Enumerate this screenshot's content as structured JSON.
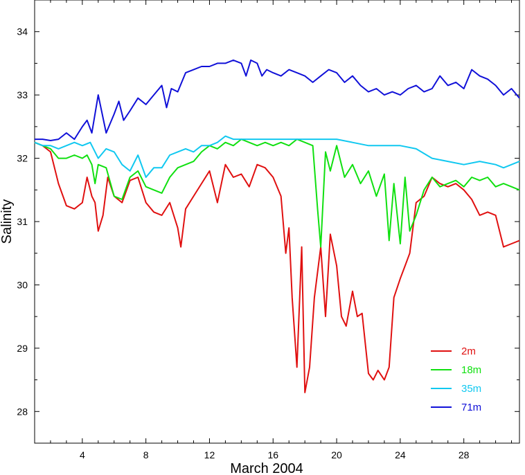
{
  "chart_data": {
    "type": "line",
    "title": "",
    "xlabel": "March 2004",
    "ylabel": "Salinity",
    "xlim": [
      1,
      31.5
    ],
    "ylim": [
      27.5,
      34.5
    ],
    "x_ticks": [
      4,
      8,
      12,
      16,
      20,
      24,
      28
    ],
    "y_ticks": [
      28,
      29,
      30,
      31,
      32,
      33,
      34
    ],
    "legend_position": "bottom-right",
    "grid": false,
    "series": [
      {
        "name": "2m",
        "color": "#e01010",
        "x": [
          1.0,
          1.5,
          2.0,
          2.5,
          3.0,
          3.5,
          4.0,
          4.3,
          4.6,
          4.8,
          5.0,
          5.3,
          5.6,
          6.0,
          6.5,
          7.0,
          7.5,
          8.0,
          8.5,
          9.0,
          9.5,
          10.0,
          10.2,
          10.5,
          11.0,
          11.5,
          12.0,
          12.5,
          13.0,
          13.5,
          14.0,
          14.5,
          15.0,
          15.5,
          16.0,
          16.5,
          16.8,
          17.0,
          17.2,
          17.5,
          17.8,
          18.0,
          18.3,
          18.6,
          19.0,
          19.3,
          19.6,
          20.0,
          20.3,
          20.6,
          21.0,
          21.3,
          21.6,
          22.0,
          22.3,
          22.6,
          23.0,
          23.3,
          23.6,
          24.0,
          24.3,
          24.6,
          25.0,
          25.5,
          26.0,
          26.5,
          27.0,
          27.5,
          28.0,
          28.5,
          29.0,
          29.5,
          30.0,
          30.5,
          31.0,
          31.5
        ],
        "values": [
          32.25,
          32.2,
          32.1,
          31.6,
          31.25,
          31.2,
          31.3,
          31.7,
          31.4,
          31.3,
          30.85,
          31.1,
          31.7,
          31.4,
          31.3,
          31.65,
          31.7,
          31.3,
          31.15,
          31.1,
          31.3,
          30.9,
          30.6,
          31.2,
          31.4,
          31.6,
          31.8,
          31.3,
          31.9,
          31.7,
          31.75,
          31.55,
          31.9,
          31.85,
          31.7,
          31.4,
          30.5,
          30.9,
          29.8,
          28.7,
          30.6,
          28.3,
          28.7,
          29.8,
          30.6,
          29.5,
          30.8,
          30.3,
          29.5,
          29.35,
          29.9,
          29.5,
          29.55,
          28.6,
          28.5,
          28.65,
          28.5,
          28.7,
          29.8,
          30.1,
          30.3,
          30.5,
          31.3,
          31.4,
          31.7,
          31.6,
          31.55,
          31.6,
          31.5,
          31.35,
          31.1,
          31.15,
          31.1,
          30.6,
          30.65,
          30.7
        ]
      },
      {
        "name": "18m",
        "color": "#10e010",
        "x": [
          1.0,
          1.5,
          2.0,
          2.5,
          3.0,
          3.5,
          4.0,
          4.3,
          4.6,
          4.8,
          5.0,
          5.5,
          6.0,
          6.5,
          7.0,
          7.5,
          8.0,
          8.5,
          9.0,
          9.5,
          10.0,
          10.5,
          11.0,
          11.5,
          12.0,
          12.5,
          13.0,
          13.5,
          14.0,
          14.5,
          15.0,
          15.5,
          16.0,
          16.5,
          17.0,
          17.5,
          18.0,
          18.5,
          18.8,
          19.0,
          19.3,
          19.6,
          20.0,
          20.5,
          21.0,
          21.5,
          22.0,
          22.5,
          23.0,
          23.3,
          23.6,
          24.0,
          24.3,
          24.6,
          25.0,
          25.5,
          26.0,
          26.5,
          27.0,
          27.5,
          28.0,
          28.5,
          29.0,
          29.5,
          30.0,
          30.5,
          31.0,
          31.5
        ],
        "values": [
          32.25,
          32.2,
          32.15,
          32.0,
          32.0,
          32.05,
          32.0,
          32.05,
          31.9,
          31.6,
          31.9,
          31.85,
          31.4,
          31.35,
          31.7,
          31.8,
          31.55,
          31.5,
          31.45,
          31.7,
          31.85,
          31.9,
          31.95,
          32.1,
          32.2,
          32.15,
          32.25,
          32.2,
          32.3,
          32.25,
          32.2,
          32.25,
          32.2,
          32.25,
          32.2,
          32.3,
          32.25,
          32.2,
          31.2,
          30.6,
          32.1,
          31.8,
          32.2,
          31.7,
          31.9,
          31.6,
          31.8,
          31.4,
          31.75,
          30.7,
          31.6,
          30.65,
          31.7,
          30.85,
          31.1,
          31.5,
          31.7,
          31.55,
          31.6,
          31.65,
          31.55,
          31.7,
          31.65,
          31.7,
          31.55,
          31.6,
          31.55,
          31.5
        ]
      },
      {
        "name": "35m",
        "color": "#10c8f0",
        "x": [
          1.0,
          1.5,
          2.0,
          2.5,
          3.0,
          3.5,
          4.0,
          4.5,
          5.0,
          5.5,
          6.0,
          6.5,
          7.0,
          7.5,
          8.0,
          8.5,
          9.0,
          9.5,
          10.0,
          10.5,
          11.0,
          11.5,
          12.0,
          12.5,
          13.0,
          13.5,
          14.0,
          15.0,
          16.0,
          17.0,
          18.0,
          19.0,
          20.0,
          21.0,
          22.0,
          23.0,
          24.0,
          25.0,
          26.0,
          27.0,
          28.0,
          29.0,
          30.0,
          30.5,
          31.0,
          31.5
        ],
        "values": [
          32.25,
          32.2,
          32.2,
          32.15,
          32.2,
          32.25,
          32.2,
          32.25,
          32.0,
          32.15,
          32.1,
          31.9,
          31.8,
          32.05,
          31.7,
          31.85,
          31.85,
          32.05,
          32.1,
          32.15,
          32.1,
          32.2,
          32.2,
          32.25,
          32.35,
          32.3,
          32.3,
          32.3,
          32.3,
          32.3,
          32.3,
          32.3,
          32.3,
          32.25,
          32.2,
          32.2,
          32.2,
          32.15,
          32.0,
          31.95,
          31.9,
          31.95,
          31.9,
          31.85,
          31.9,
          31.95
        ]
      },
      {
        "name": "71m",
        "color": "#1010d8",
        "x": [
          1.0,
          1.5,
          2.0,
          2.5,
          3.0,
          3.5,
          4.0,
          4.3,
          4.6,
          5.0,
          5.5,
          6.0,
          6.3,
          6.6,
          7.0,
          7.5,
          8.0,
          8.5,
          9.0,
          9.3,
          9.6,
          10.0,
          10.5,
          11.0,
          11.5,
          12.0,
          12.5,
          13.0,
          13.5,
          14.0,
          14.3,
          14.6,
          15.0,
          15.3,
          15.6,
          16.0,
          16.5,
          17.0,
          17.5,
          18.0,
          18.5,
          19.0,
          19.5,
          20.0,
          20.5,
          21.0,
          21.5,
          22.0,
          22.5,
          23.0,
          23.5,
          24.0,
          24.5,
          25.0,
          25.5,
          26.0,
          26.5,
          27.0,
          27.5,
          28.0,
          28.5,
          29.0,
          29.5,
          30.0,
          30.5,
          31.0,
          31.5
        ],
        "values": [
          32.3,
          32.3,
          32.28,
          32.3,
          32.4,
          32.3,
          32.5,
          32.6,
          32.4,
          33.0,
          32.4,
          32.7,
          32.9,
          32.6,
          32.75,
          32.95,
          32.85,
          33.0,
          33.15,
          32.8,
          33.1,
          33.05,
          33.35,
          33.4,
          33.45,
          33.45,
          33.5,
          33.5,
          33.55,
          33.5,
          33.3,
          33.55,
          33.5,
          33.3,
          33.4,
          33.35,
          33.3,
          33.4,
          33.35,
          33.3,
          33.2,
          33.3,
          33.4,
          33.35,
          33.2,
          33.3,
          33.15,
          33.05,
          33.1,
          33.0,
          33.05,
          33.0,
          33.1,
          33.15,
          33.05,
          33.1,
          33.3,
          33.15,
          33.2,
          33.1,
          33.4,
          33.3,
          33.25,
          33.15,
          33.0,
          33.1,
          32.95
        ]
      }
    ]
  }
}
